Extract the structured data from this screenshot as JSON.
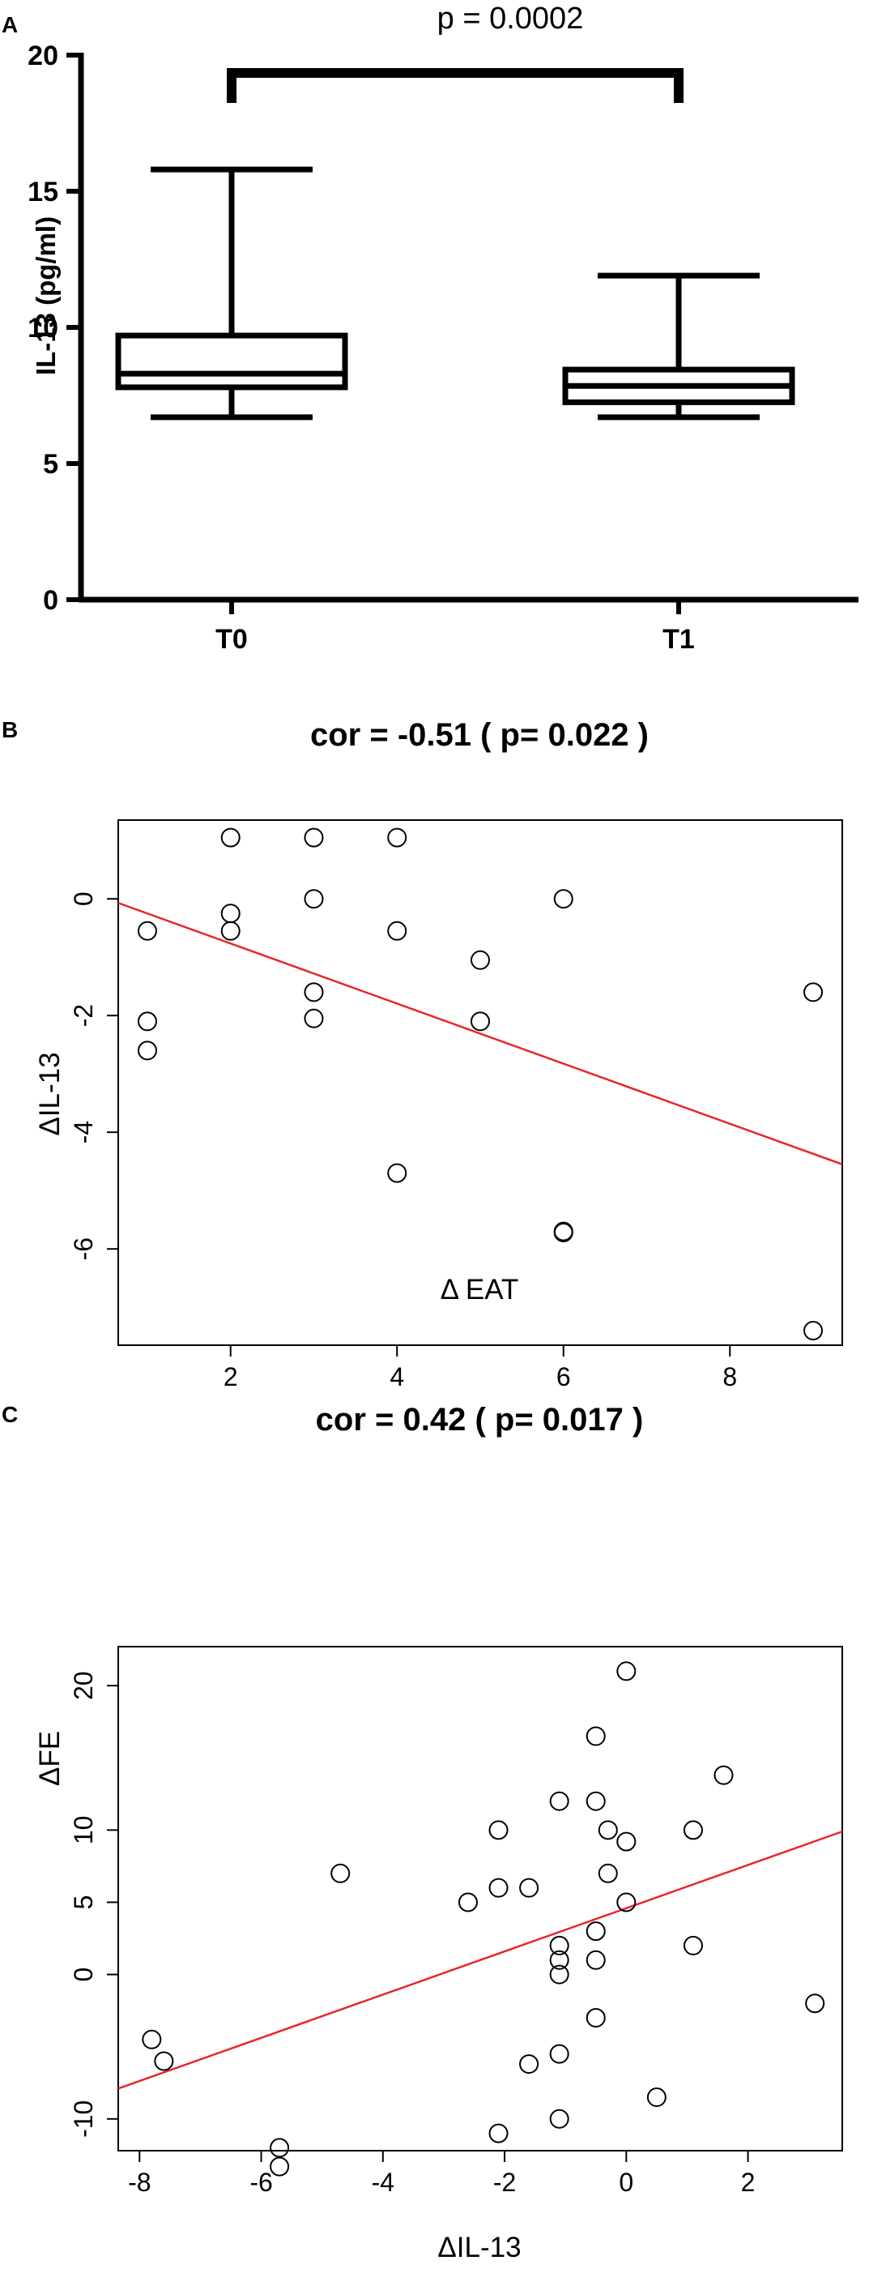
{
  "chart_data": [
    {
      "panel_label": "A",
      "type": "box",
      "annotation": "p = 0.0002",
      "ylabel": "IL-13 (pg/ml)",
      "ylim": [
        0,
        20
      ],
      "yticks": [
        0,
        5,
        10,
        15,
        20
      ],
      "categories": [
        "T0",
        "T1"
      ],
      "boxes": [
        {
          "name": "T0",
          "min": 6.7,
          "q1": 7.8,
          "median": 8.3,
          "q3": 9.7,
          "max": 15.8
        },
        {
          "name": "T1",
          "min": 6.7,
          "q1": 7.25,
          "median": 7.85,
          "q3": 8.45,
          "max": 11.9
        }
      ]
    },
    {
      "panel_label": "B",
      "type": "scatter",
      "title": "cor = -0.51 ( p= 0.022 )",
      "xlabel": "Δ EAT",
      "ylabel": "ΔIL-13",
      "xlim": [
        0.65,
        9.35
      ],
      "ylim": [
        -7.65,
        1.35
      ],
      "xticks": [
        2,
        4,
        6,
        8
      ],
      "yticks": [
        0,
        -2,
        -4,
        -6
      ],
      "points": [
        [
          2,
          1.05
        ],
        [
          3,
          1.05
        ],
        [
          4,
          1.05
        ],
        [
          2,
          -0.25
        ],
        [
          2,
          -0.55
        ],
        [
          3,
          0.0
        ],
        [
          6,
          0.0
        ],
        [
          1,
          -0.55
        ],
        [
          4,
          -0.55
        ],
        [
          5,
          -1.05
        ],
        [
          3,
          -1.6
        ],
        [
          9,
          -1.6
        ],
        [
          1,
          -2.1
        ],
        [
          3,
          -2.05
        ],
        [
          5,
          -2.1
        ],
        [
          1,
          -2.6
        ],
        [
          4,
          -4.7
        ],
        [
          6,
          -5.7
        ],
        [
          6,
          -5.72
        ],
        [
          9,
          -7.4
        ]
      ],
      "fit_line": {
        "x": [
          0.65,
          9.35
        ],
        "y": [
          -0.07,
          -4.55
        ]
      },
      "fit_color": "#e8262d"
    },
    {
      "panel_label": "C",
      "type": "scatter",
      "title": "cor = 0.42 ( p= 0.017 )",
      "xlabel": "ΔIL-13",
      "ylabel": "ΔFE",
      "xlim": [
        -8.35,
        3.55
      ],
      "ylim": [
        -12.2,
        22.7
      ],
      "xticks": [
        -8,
        -6,
        -4,
        -2,
        0,
        2
      ],
      "yticks": [
        20,
        10,
        5,
        0,
        -10
      ],
      "points": [
        [
          0.0,
          21.0
        ],
        [
          -0.5,
          16.5
        ],
        [
          1.6,
          13.8
        ],
        [
          -1.1,
          12.0
        ],
        [
          -0.5,
          12.0
        ],
        [
          -2.1,
          10.0
        ],
        [
          -0.3,
          10.0
        ],
        [
          1.1,
          10.0
        ],
        [
          0.0,
          9.2
        ],
        [
          -4.7,
          7.0
        ],
        [
          -0.3,
          7.0
        ],
        [
          -2.1,
          6.0
        ],
        [
          -1.6,
          6.0
        ],
        [
          -2.6,
          5.0
        ],
        [
          0.0,
          5.0
        ],
        [
          -0.5,
          3.0
        ],
        [
          -1.1,
          2.0
        ],
        [
          1.1,
          2.0
        ],
        [
          -1.1,
          1.0
        ],
        [
          -0.5,
          1.0
        ],
        [
          -1.1,
          0.0
        ],
        [
          -0.5,
          -3.0
        ],
        [
          3.1,
          -2.0
        ],
        [
          -7.8,
          -4.5
        ],
        [
          -1.1,
          -5.5
        ],
        [
          -7.6,
          -6.0
        ],
        [
          -1.6,
          -6.2
        ],
        [
          0.5,
          -8.5
        ],
        [
          -1.1,
          -10.0
        ],
        [
          -2.1,
          -11.0
        ],
        [
          -5.7,
          -12.0
        ],
        [
          -5.7,
          -13.3
        ]
      ],
      "fit_line": {
        "x": [
          -8.35,
          3.55
        ],
        "y": [
          -7.9,
          9.9
        ]
      },
      "fit_color": "#e8262d"
    }
  ]
}
